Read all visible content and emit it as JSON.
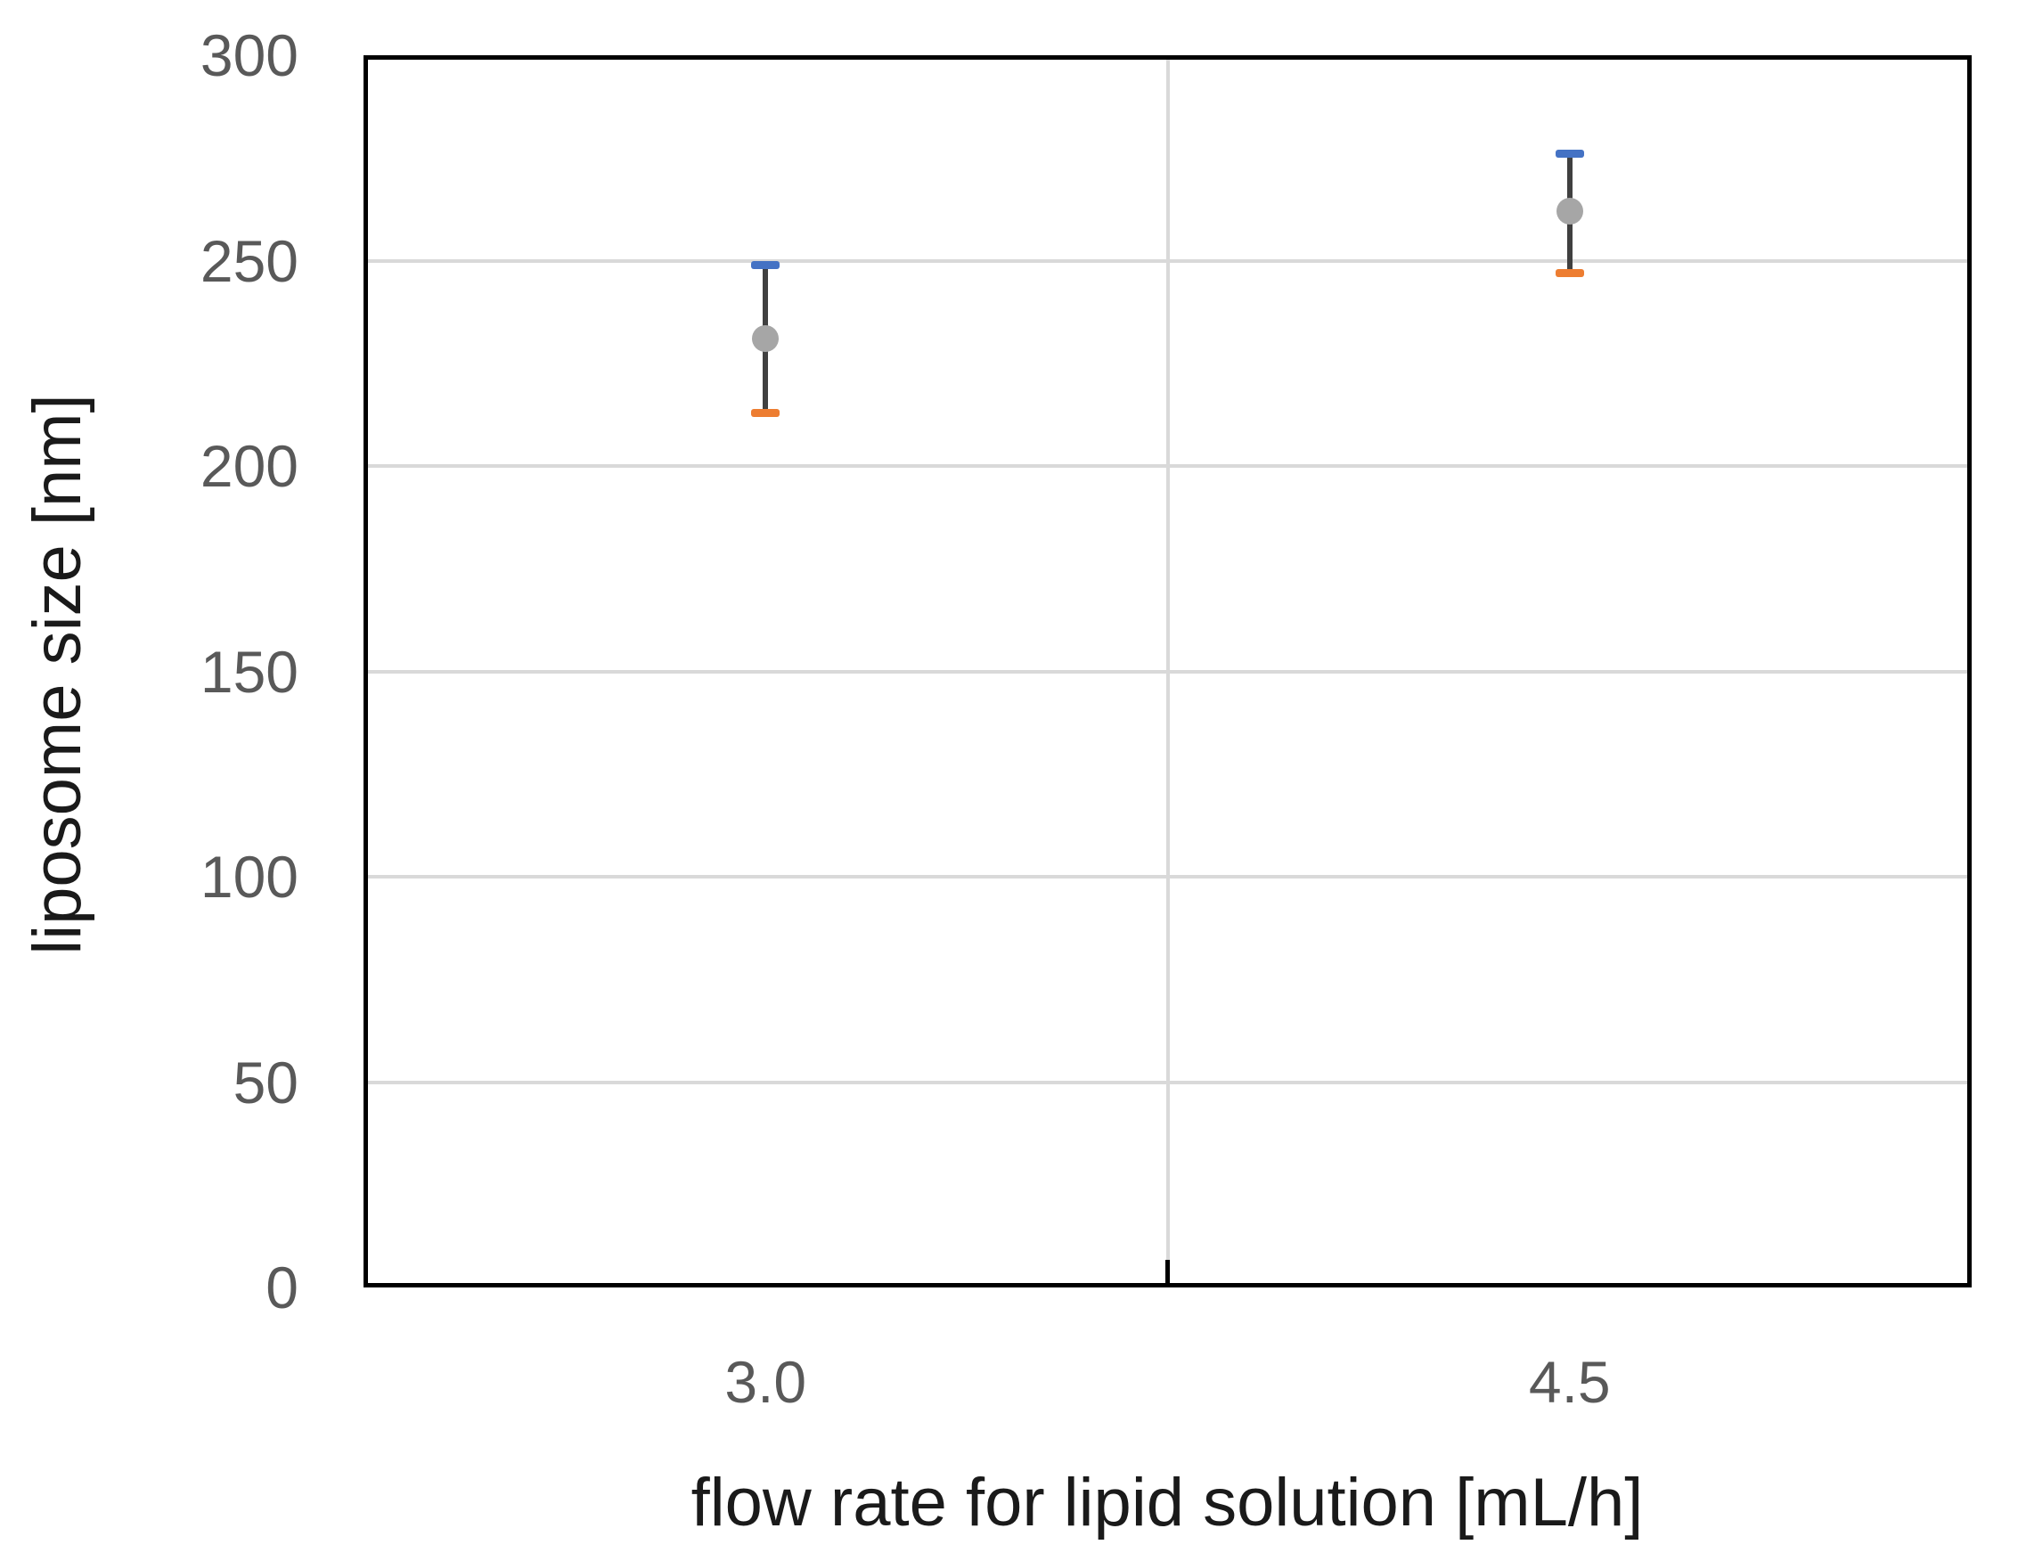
{
  "chart_data": {
    "type": "scatter",
    "title": "",
    "xlabel": "flow rate for lipid solution [mL/h]",
    "ylabel": "liposome size [nm]",
    "categories": [
      "3.0",
      "4.5"
    ],
    "series": [
      {
        "name": "liposome size",
        "values": [
          231,
          262
        ],
        "error_upper": [
          249,
          276
        ],
        "error_lower": [
          213,
          247
        ]
      }
    ],
    "ylim": [
      0,
      300
    ],
    "yticks": [
      0,
      50,
      100,
      150,
      200,
      250,
      300
    ],
    "grid": "horizontal gridlines every 50, one vertical gridline at plot center",
    "legend": "none"
  },
  "colors": {
    "marker": "#a6a6a6",
    "error_line": "#404040",
    "upper_cap": "#4472c4",
    "lower_cap": "#ed7d31",
    "gridline": "#d9d9d9",
    "axis_border": "#000000",
    "tick_label": "#595959",
    "axis_title": "#1a1a1a",
    "background": "#ffffff"
  }
}
